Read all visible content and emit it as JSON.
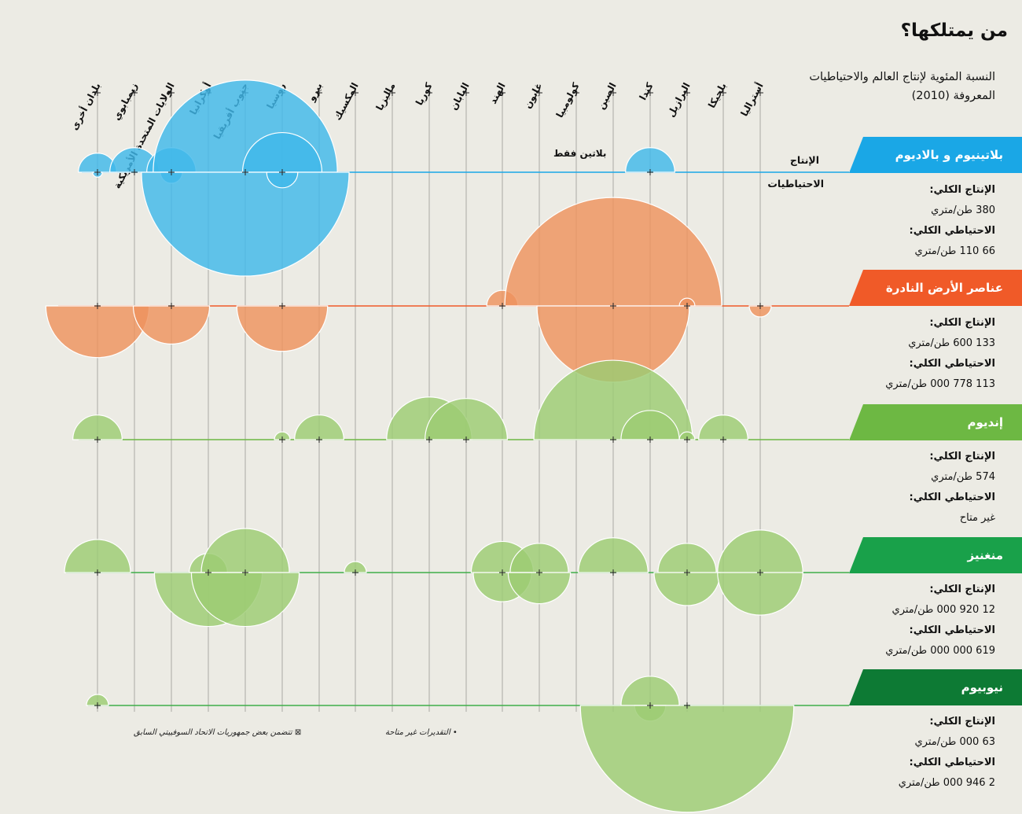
{
  "title": "من يمتلكها؟",
  "subtitle": "النسبة المئوية لإنتاج العالم والاحتياطيات المعروفة (2010)",
  "legend": {
    "production": "الإنتاج",
    "reserves": "الاحتياطيات"
  },
  "note_platinum": "بلاتين فقط",
  "footnotes": {
    "ussr": "⊠ تتضمن بعض جمهوريات الاتحاد السوفييتي السابق",
    "estimates": "• التقديرات غير متاحة"
  },
  "countries": [
    "بلدان أخرى",
    "زيمبابوي",
    "الولايات المتحدة الأمريكية",
    "أوكرانيا",
    "جنوب أفريقيا",
    "روسيا",
    "بيرو",
    "المكسيك",
    "ماليزيا",
    "كوريا",
    "اليابان",
    "الهند",
    "غابون",
    "كولومبيا",
    "الصين",
    "كندا",
    "البرازيل",
    "بلجيكا",
    "أستراليا"
  ],
  "colors": {
    "platinum": "#1aa7e6",
    "rare_earth": "#f05a28",
    "indium": "#6db843",
    "manganese": "#19a14a",
    "niobium": "#0d7a34"
  },
  "minerals": [
    {
      "name": "بلاتينيوم و بالاديوم",
      "prod_label": "الإنتاج الكلي:",
      "prod_value": "380 طن/متري",
      "res_label": "الاحتياطي الكلي:",
      "res_value": "66 110 طن/متري"
    },
    {
      "name": "عناصر الأرض النادرة",
      "prod_label": "الإنتاج الكلي:",
      "prod_value": "133 600 طن/متري",
      "res_label": "الاحتياطي الكلي:",
      "res_value": "113 778 000 طن/متري"
    },
    {
      "name": "إنديوم",
      "prod_label": "الإنتاج الكلي:",
      "prod_value": "574 طن/متري",
      "res_label": "الاحتياطي الكلي:",
      "res_value": "غير متاح"
    },
    {
      "name": "منغنيز",
      "prod_label": "الإنتاج الكلي:",
      "prod_value": "12 920 000 طن/متري",
      "res_label": "الاحتياطي الكلي:",
      "res_value": "619 000 000 طن/متري"
    },
    {
      "name": "نيوبيوم",
      "prod_label": "الإنتاج الكلي:",
      "prod_value": "63 000 طن/متري",
      "res_label": "الاحتياطي الكلي:",
      "res_value": "2 946 000 طن/متري"
    }
  ],
  "chart_data": {
    "type": "scatter",
    "title": "من يمتلكها؟",
    "subtitle": "النسبة المئوية لإنتاج العالم والاحتياطيات المعروفة (2010)",
    "note": "circle area proportional to estimated share (%) of world total; production shown above the line, reserves below",
    "series": [
      {
        "name": "بلاتينيوم و بالاديوم",
        "production": {
          "بلدان أخرى": 3,
          "زيمبابوي": 5,
          "الولايات المتحدة الأمريكية": 5,
          "جنوب أفريقيا": 70,
          "روسيا": 13,
          "كندا": 5
        },
        "reserves": {
          "بلدان أخرى": 0.2,
          "الولايات المتحدة الأمريكية": 1,
          "جنوب أفريقيا": 89,
          "روسيا": 2
        }
      },
      {
        "name": "عناصر الأرض النادرة",
        "production": {
          "الهند": 2,
          "الصين": 97,
          "البرازيل": 0.5
        },
        "reserves": {
          "بلدان أخرى": 22,
          "الولايات المتحدة الأمريكية": 12,
          "روسيا": 17,
          "الصين": 48,
          "أستراليا": 1
        }
      },
      {
        "name": "إنديوم",
        "production": {
          "بلدان أخرى": 5,
          "روسيا": 0.5,
          "بيرو": 5,
          "كوريا": 15,
          "اليابان": 14,
          "الصين": 52,
          "كندا": 7,
          "البرازيل": 0.5,
          "بلجيكا": 5
        },
        "reserves": {}
      },
      {
        "name": "منغنيز",
        "production": {
          "بلدان أخرى": 9,
          "أوكرانيا": 3,
          "جنوب أفريقيا": 16,
          "المكسيك": 1,
          "الهند": 8,
          "غابون": 7,
          "الصين": 10,
          "البرازيل": 7,
          "أستراليا": 15
        },
        "reserves": {
          "أوكرانيا": 24,
          "جنوب أفريقيا": 24,
          "الهند": 7,
          "غابون": 8,
          "البرازيل": 9,
          "أستراليا": 15
        }
      },
      {
        "name": "نيوبيوم",
        "production": {
          "بلدان أخرى": 1,
          "كندا": 7
        },
        "reserves": {
          "كندا": 2,
          "البرازيل": 94
        }
      }
    ]
  }
}
